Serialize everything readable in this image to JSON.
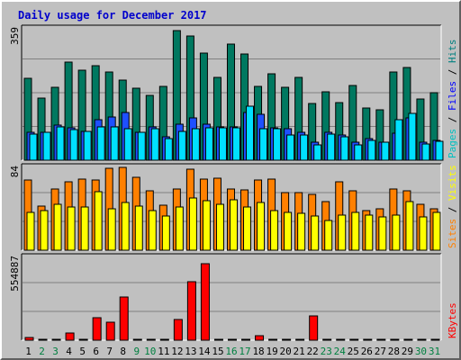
{
  "title": "Daily usage for December 2017",
  "colors": {
    "hits": "#008080",
    "hits_fill": "#007860",
    "files": "#0000ff",
    "files_fill": "#1e50ff",
    "pages": "#00c0c0",
    "pages_fill": "#00e0ff",
    "visits": "#ffff00",
    "visits_fill": "#ffff00",
    "sites": "#ff8000",
    "sites_fill": "#ff8000",
    "kbytes": "#ff0000",
    "kbytes_fill": "#ff0000",
    "weekend_day": "#008040",
    "weekday_day": "#000000"
  },
  "chart_data": [
    {
      "type": "bar",
      "panel": "hits-files-pages",
      "y_max_label": "359",
      "ylim": [
        0,
        359
      ],
      "legend": [
        {
          "label": "Pages",
          "sep": "/"
        },
        {
          "label": "Files",
          "sep": "/"
        },
        {
          "label": "Hits",
          "sep": ""
        }
      ],
      "categories": [
        "1",
        "2",
        "3",
        "4",
        "5",
        "6",
        "7",
        "8",
        "9",
        "10",
        "11",
        "12",
        "13",
        "14",
        "15",
        "16",
        "17",
        "18",
        "19",
        "20",
        "21",
        "22",
        "23",
        "24",
        "25",
        "26",
        "27",
        "28",
        "29",
        "30",
        "31"
      ],
      "series": [
        {
          "name": "Hits",
          "values": [
            223,
            170,
            200,
            268,
            245,
            258,
            242,
            220,
            196,
            178,
            202,
            354,
            339,
            293,
            226,
            317,
            289,
            201,
            236,
            199,
            225,
            154,
            186,
            158,
            204,
            143,
            137,
            241,
            253,
            166,
            185
          ]
        },
        {
          "name": "Files",
          "values": [
            75,
            75,
            95,
            88,
            78,
            110,
            117,
            130,
            76,
            90,
            65,
            98,
            115,
            98,
            90,
            90,
            130,
            125,
            88,
            85,
            75,
            50,
            75,
            68,
            50,
            60,
            50,
            73,
            115,
            50,
            54
          ]
        },
        {
          "name": "Pages",
          "values": [
            72,
            75,
            90,
            83,
            78,
            92,
            92,
            86,
            75,
            86,
            60,
            78,
            85,
            88,
            88,
            88,
            148,
            85,
            85,
            70,
            68,
            42,
            72,
            65,
            42,
            55,
            48,
            110,
            128,
            44,
            52
          ]
        }
      ]
    },
    {
      "type": "bar",
      "panel": "visits-sites",
      "y_max_label": "84",
      "ylim": [
        0,
        84
      ],
      "legend": [
        {
          "label": "Sites",
          "sep": "/"
        },
        {
          "label": "Visits",
          "sep": ""
        }
      ],
      "categories": [
        "1",
        "2",
        "3",
        "4",
        "5",
        "6",
        "7",
        "8",
        "9",
        "10",
        "11",
        "12",
        "13",
        "14",
        "15",
        "16",
        "17",
        "18",
        "19",
        "20",
        "21",
        "22",
        "23",
        "24",
        "25",
        "26",
        "27",
        "28",
        "29",
        "30",
        "31"
      ],
      "series": [
        {
          "name": "Sites",
          "values": [
            71,
            45,
            62,
            69,
            72,
            71,
            83,
            84,
            74,
            60,
            46,
            62,
            82,
            72,
            73,
            62,
            61,
            71,
            72,
            58,
            58,
            57,
            49,
            69,
            60,
            40,
            42,
            62,
            60,
            47,
            42
          ]
        },
        {
          "name": "Visits",
          "values": [
            38,
            40,
            47,
            44,
            44,
            59,
            42,
            48,
            45,
            40,
            35,
            44,
            53,
            50,
            47,
            51,
            44,
            48,
            40,
            38,
            37,
            35,
            30,
            36,
            38,
            36,
            34,
            36,
            49,
            34,
            38
          ]
        }
      ]
    },
    {
      "type": "bar",
      "panel": "kbytes",
      "y_max_label": "554887",
      "ylim": [
        0,
        554887
      ],
      "legend": [
        {
          "label": "KBytes",
          "sep": ""
        }
      ],
      "categories": [
        "1",
        "2",
        "3",
        "4",
        "5",
        "6",
        "7",
        "8",
        "9",
        "10",
        "11",
        "12",
        "13",
        "14",
        "15",
        "16",
        "17",
        "18",
        "19",
        "20",
        "21",
        "22",
        "23",
        "24",
        "25",
        "26",
        "27",
        "28",
        "29",
        "30",
        "31"
      ],
      "weekend_days": [
        "2",
        "3",
        "9",
        "10",
        "16",
        "17",
        "23",
        "24",
        "30",
        "31"
      ],
      "series": [
        {
          "name": "KBytes",
          "values": [
            20000,
            0,
            0,
            50000,
            0,
            148000,
            120000,
            288000,
            0,
            0,
            0,
            136000,
            395000,
            510000,
            0,
            0,
            0,
            28000,
            0,
            0,
            0,
            160000,
            0,
            0,
            0,
            0,
            0,
            0,
            0,
            0,
            0
          ]
        }
      ]
    }
  ]
}
